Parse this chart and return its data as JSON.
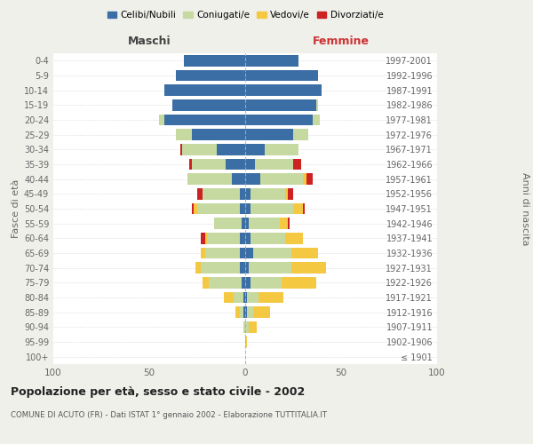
{
  "age_groups": [
    "100+",
    "95-99",
    "90-94",
    "85-89",
    "80-84",
    "75-79",
    "70-74",
    "65-69",
    "60-64",
    "55-59",
    "50-54",
    "45-49",
    "40-44",
    "35-39",
    "30-34",
    "25-29",
    "20-24",
    "15-19",
    "10-14",
    "5-9",
    "0-4"
  ],
  "birth_years": [
    "≤ 1901",
    "1902-1906",
    "1907-1911",
    "1912-1916",
    "1917-1921",
    "1922-1926",
    "1927-1931",
    "1932-1936",
    "1937-1941",
    "1942-1946",
    "1947-1951",
    "1952-1956",
    "1957-1961",
    "1962-1966",
    "1967-1971",
    "1972-1976",
    "1977-1981",
    "1982-1986",
    "1987-1991",
    "1992-1996",
    "1997-2001"
  ],
  "maschi": {
    "celibi": [
      0,
      0,
      0,
      1,
      1,
      2,
      3,
      3,
      3,
      2,
      3,
      3,
      7,
      10,
      15,
      28,
      42,
      38,
      42,
      36,
      32
    ],
    "coniugati": [
      0,
      0,
      1,
      2,
      5,
      17,
      20,
      18,
      17,
      14,
      22,
      19,
      23,
      18,
      18,
      8,
      3,
      0,
      0,
      0,
      0
    ],
    "vedovi": [
      0,
      0,
      0,
      2,
      5,
      3,
      3,
      2,
      1,
      0,
      2,
      0,
      0,
      0,
      0,
      0,
      0,
      0,
      0,
      0,
      0
    ],
    "divorziati": [
      0,
      0,
      0,
      0,
      0,
      0,
      0,
      0,
      2,
      0,
      1,
      3,
      0,
      1,
      1,
      0,
      0,
      0,
      0,
      0,
      0
    ]
  },
  "femmine": {
    "nubili": [
      0,
      0,
      0,
      1,
      1,
      3,
      2,
      4,
      3,
      2,
      3,
      3,
      8,
      5,
      10,
      25,
      35,
      37,
      40,
      38,
      28
    ],
    "coniugate": [
      0,
      0,
      2,
      3,
      6,
      16,
      22,
      20,
      18,
      16,
      22,
      18,
      22,
      20,
      18,
      8,
      4,
      1,
      0,
      0,
      0
    ],
    "vedove": [
      0,
      1,
      4,
      9,
      13,
      18,
      18,
      14,
      9,
      4,
      5,
      1,
      2,
      0,
      0,
      0,
      0,
      0,
      0,
      0,
      0
    ],
    "divorziate": [
      0,
      0,
      0,
      0,
      0,
      0,
      0,
      0,
      0,
      1,
      1,
      3,
      3,
      4,
      0,
      0,
      0,
      0,
      0,
      0,
      0
    ]
  },
  "colors": {
    "celibi": "#3a6ea5",
    "coniugati": "#c5d9a0",
    "vedovi": "#f5c842",
    "divorziati": "#cc2222"
  },
  "xlim": 100,
  "title": "Popolazione per età, sesso e stato civile - 2002",
  "subtitle": "COMUNE DI ACUTO (FR) - Dati ISTAT 1° gennaio 2002 - Elaborazione TUTTITALIA.IT",
  "ylabel_left": "Fasce di età",
  "ylabel_right": "Anni di nascita",
  "xlabel_left": "Maschi",
  "xlabel_right": "Femmine",
  "bg_color": "#f0f0eb",
  "plot_bg": "#ffffff",
  "legend_labels": [
    "Celibi/Nubili",
    "Coniugati/e",
    "Vedovi/e",
    "Divorziati/e"
  ]
}
